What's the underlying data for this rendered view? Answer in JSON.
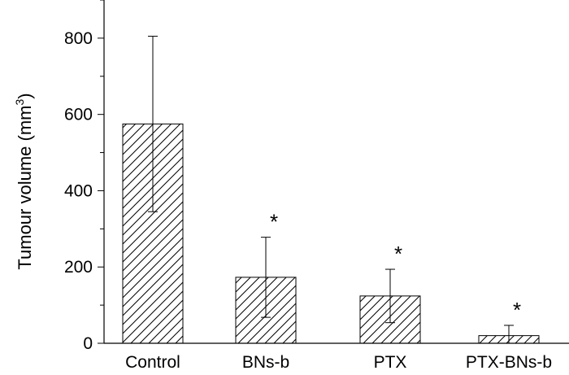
{
  "chart_data": {
    "type": "bar",
    "title": "",
    "xlabel": "",
    "ylabel": "Tumour volume (mm",
    "ylabel_superscript": "3",
    "ylabel_suffix": ")",
    "ylim": [
      0,
      900
    ],
    "yticks": [
      0,
      200,
      400,
      600,
      800
    ],
    "minor_ytick_step": 100,
    "grid": false,
    "legend": "none",
    "bar_pattern": "diagonal-hatch",
    "bar_color": "#ffffff",
    "hatch_color": "#000000",
    "categories": [
      "Control",
      "BNs-b",
      "PTX",
      "PTX-BNs-b"
    ],
    "values": [
      575,
      173,
      124,
      20
    ],
    "error": [
      230,
      105,
      70,
      27
    ],
    "significance": [
      "",
      "*",
      "*",
      "*"
    ]
  }
}
